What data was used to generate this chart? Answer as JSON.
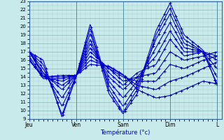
{
  "xlabel": "Température (°c)",
  "bg_color": "#c8eaea",
  "grid_minor_color": "#b0d0d0",
  "grid_major_color": "#90b8b8",
  "line_color": "#0000cc",
  "ylim": [
    9,
    23
  ],
  "xlim": [
    0,
    41
  ],
  "yticks": [
    9,
    10,
    11,
    12,
    13,
    14,
    15,
    16,
    17,
    18,
    19,
    20,
    21,
    22,
    23
  ],
  "day_ticks": [
    0,
    10,
    20,
    30,
    40
  ],
  "day_labels": [
    "Jeu",
    "Ven",
    "Sam",
    "Dim",
    "L"
  ],
  "ensemble": [
    {
      "wx": [
        0,
        3,
        7,
        10,
        13,
        17,
        20,
        23,
        27,
        30,
        33,
        37,
        40
      ],
      "wy": [
        17,
        16,
        9.2,
        14,
        20.3,
        12.5,
        9.8,
        12.5,
        19.5,
        22.8,
        19.0,
        17.2,
        13.0
      ]
    },
    {
      "wx": [
        0,
        3,
        7,
        10,
        13,
        17,
        20,
        23,
        27,
        30,
        33,
        37,
        40
      ],
      "wy": [
        17,
        15.5,
        9.5,
        14,
        19.8,
        12.0,
        9.6,
        12.0,
        19.0,
        22.2,
        18.5,
        17.0,
        13.2
      ]
    },
    {
      "wx": [
        0,
        3,
        7,
        10,
        13,
        17,
        20,
        23,
        27,
        30,
        33,
        37,
        40
      ],
      "wy": [
        17,
        15,
        10.5,
        14,
        19.2,
        13.0,
        10.5,
        13.0,
        18.5,
        21.5,
        18.0,
        17.0,
        14.0
      ]
    },
    {
      "wx": [
        0,
        3,
        7,
        10,
        13,
        17,
        20,
        23,
        27,
        30,
        33,
        37,
        40
      ],
      "wy": [
        17,
        14.5,
        11.5,
        14.2,
        18.5,
        13.5,
        11.5,
        13.5,
        17.5,
        20.5,
        17.5,
        17.0,
        15.0
      ]
    },
    {
      "wx": [
        0,
        3,
        7,
        10,
        13,
        17,
        20,
        23,
        27,
        30,
        33,
        37,
        40
      ],
      "wy": [
        17,
        14.5,
        12.5,
        14.2,
        18.0,
        14.0,
        12.5,
        14.0,
        16.5,
        19.5,
        17.0,
        17.0,
        16.0
      ]
    },
    {
      "wx": [
        0,
        3,
        7,
        10,
        13,
        17,
        20,
        23,
        27,
        30,
        33,
        37,
        40
      ],
      "wy": [
        17,
        14.2,
        13.0,
        14.2,
        17.5,
        14.5,
        13.0,
        14.5,
        15.5,
        18.5,
        16.5,
        17.0,
        16.5
      ]
    },
    {
      "wx": [
        0,
        3,
        7,
        10,
        13,
        17,
        20,
        23,
        27,
        30,
        33,
        37,
        40
      ],
      "wy": [
        16.5,
        14.0,
        13.5,
        14.2,
        17.0,
        15.0,
        13.5,
        14.0,
        14.5,
        17.0,
        16.0,
        16.5,
        17.0
      ]
    },
    {
      "wx": [
        0,
        3,
        7,
        10,
        13,
        17,
        20,
        23,
        27,
        30,
        33,
        37,
        40
      ],
      "wy": [
        16.2,
        13.8,
        13.8,
        14.2,
        16.5,
        15.0,
        14.0,
        13.5,
        13.5,
        15.5,
        15.0,
        16.0,
        16.5
      ]
    },
    {
      "wx": [
        0,
        3,
        7,
        10,
        13,
        17,
        20,
        23,
        27,
        30,
        33,
        37,
        40
      ],
      "wy": [
        16.0,
        14.0,
        14.0,
        14.2,
        16.0,
        15.2,
        14.2,
        13.0,
        12.5,
        13.5,
        14.0,
        15.0,
        15.8
      ]
    },
    {
      "wx": [
        0,
        3,
        7,
        10,
        13,
        17,
        20,
        23,
        27,
        30,
        33,
        37,
        40
      ],
      "wy": [
        16.0,
        14.0,
        14.2,
        14.2,
        15.5,
        15.3,
        14.3,
        12.5,
        11.5,
        11.8,
        12.5,
        13.5,
        13.2
      ]
    }
  ]
}
